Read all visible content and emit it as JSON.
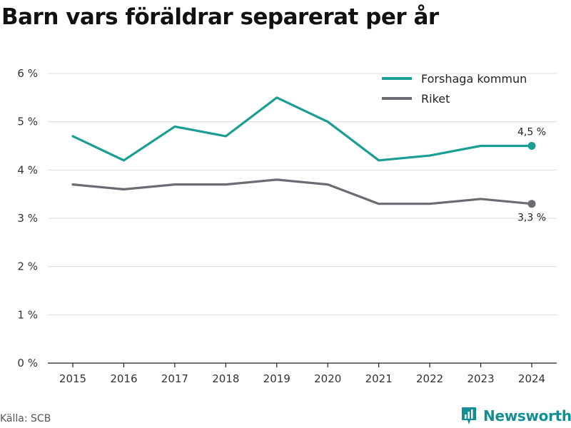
{
  "title": "Barn vars föräldrar separerat per år",
  "source": "Källa: SCB",
  "brand": {
    "name": "Newsworthy",
    "icon": "newsworthy-logo-icon",
    "color": "#138f93"
  },
  "chart_data": {
    "type": "line",
    "title": "Barn vars föräldrar separerat per år",
    "x": [
      "2015",
      "2016",
      "2017",
      "2018",
      "2019",
      "2020",
      "2021",
      "2022",
      "2023",
      "2024"
    ],
    "ylim": [
      0,
      6
    ],
    "y_ticks": [
      0,
      1,
      2,
      3,
      4,
      5,
      6
    ],
    "y_tick_labels": [
      "0 %",
      "1 %",
      "2 %",
      "3 %",
      "4 %",
      "5 %",
      "6 %"
    ],
    "grid": true,
    "legend_position": "top-right",
    "series": [
      {
        "name": "Forshaga kommun",
        "color": "#1a9e94",
        "values": [
          4.7,
          4.2,
          4.9,
          4.7,
          5.5,
          5.0,
          4.2,
          4.3,
          4.5,
          4.5
        ],
        "end_label": "4,5 %"
      },
      {
        "name": "Riket",
        "color": "#6b6b73",
        "values": [
          3.7,
          3.6,
          3.7,
          3.7,
          3.8,
          3.7,
          3.3,
          3.3,
          3.4,
          3.3
        ],
        "end_label": "3,3 %"
      }
    ]
  }
}
